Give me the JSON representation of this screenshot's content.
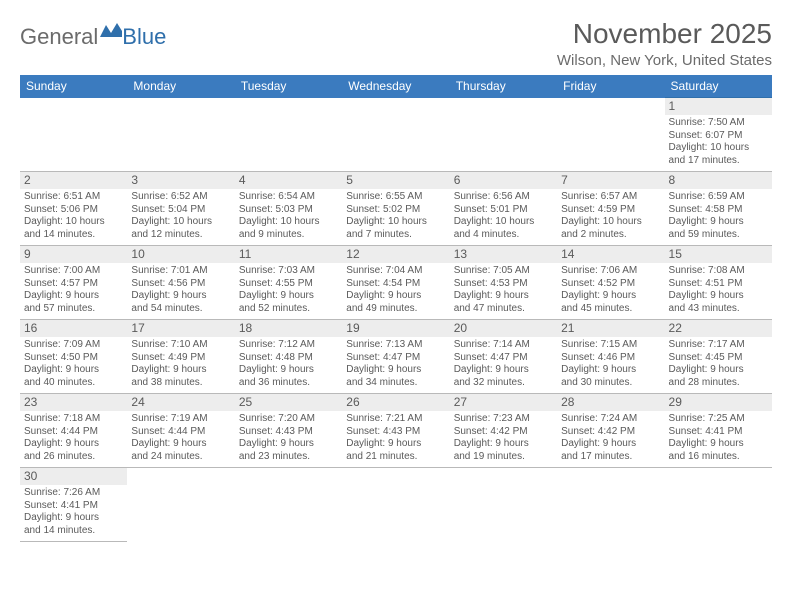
{
  "brand": {
    "part1": "General",
    "part2": "Blue"
  },
  "title": "November 2025",
  "location": "Wilson, New York, United States",
  "header_bg": "#3b7bbf",
  "header_fg": "#ffffff",
  "row_accent": "#2f6fab",
  "daynum_bg": "#ededed",
  "text_color": "#5a5a5a",
  "weekdays": [
    "Sunday",
    "Monday",
    "Tuesday",
    "Wednesday",
    "Thursday",
    "Friday",
    "Saturday"
  ],
  "weeks": [
    [
      null,
      null,
      null,
      null,
      null,
      null,
      {
        "n": "1",
        "sr": "Sunrise: 7:50 AM",
        "ss": "Sunset: 6:07 PM",
        "d1": "Daylight: 10 hours",
        "d2": "and 17 minutes."
      }
    ],
    [
      {
        "n": "2",
        "sr": "Sunrise: 6:51 AM",
        "ss": "Sunset: 5:06 PM",
        "d1": "Daylight: 10 hours",
        "d2": "and 14 minutes."
      },
      {
        "n": "3",
        "sr": "Sunrise: 6:52 AM",
        "ss": "Sunset: 5:04 PM",
        "d1": "Daylight: 10 hours",
        "d2": "and 12 minutes."
      },
      {
        "n": "4",
        "sr": "Sunrise: 6:54 AM",
        "ss": "Sunset: 5:03 PM",
        "d1": "Daylight: 10 hours",
        "d2": "and 9 minutes."
      },
      {
        "n": "5",
        "sr": "Sunrise: 6:55 AM",
        "ss": "Sunset: 5:02 PM",
        "d1": "Daylight: 10 hours",
        "d2": "and 7 minutes."
      },
      {
        "n": "6",
        "sr": "Sunrise: 6:56 AM",
        "ss": "Sunset: 5:01 PM",
        "d1": "Daylight: 10 hours",
        "d2": "and 4 minutes."
      },
      {
        "n": "7",
        "sr": "Sunrise: 6:57 AM",
        "ss": "Sunset: 4:59 PM",
        "d1": "Daylight: 10 hours",
        "d2": "and 2 minutes."
      },
      {
        "n": "8",
        "sr": "Sunrise: 6:59 AM",
        "ss": "Sunset: 4:58 PM",
        "d1": "Daylight: 9 hours",
        "d2": "and 59 minutes."
      }
    ],
    [
      {
        "n": "9",
        "sr": "Sunrise: 7:00 AM",
        "ss": "Sunset: 4:57 PM",
        "d1": "Daylight: 9 hours",
        "d2": "and 57 minutes."
      },
      {
        "n": "10",
        "sr": "Sunrise: 7:01 AM",
        "ss": "Sunset: 4:56 PM",
        "d1": "Daylight: 9 hours",
        "d2": "and 54 minutes."
      },
      {
        "n": "11",
        "sr": "Sunrise: 7:03 AM",
        "ss": "Sunset: 4:55 PM",
        "d1": "Daylight: 9 hours",
        "d2": "and 52 minutes."
      },
      {
        "n": "12",
        "sr": "Sunrise: 7:04 AM",
        "ss": "Sunset: 4:54 PM",
        "d1": "Daylight: 9 hours",
        "d2": "and 49 minutes."
      },
      {
        "n": "13",
        "sr": "Sunrise: 7:05 AM",
        "ss": "Sunset: 4:53 PM",
        "d1": "Daylight: 9 hours",
        "d2": "and 47 minutes."
      },
      {
        "n": "14",
        "sr": "Sunrise: 7:06 AM",
        "ss": "Sunset: 4:52 PM",
        "d1": "Daylight: 9 hours",
        "d2": "and 45 minutes."
      },
      {
        "n": "15",
        "sr": "Sunrise: 7:08 AM",
        "ss": "Sunset: 4:51 PM",
        "d1": "Daylight: 9 hours",
        "d2": "and 43 minutes."
      }
    ],
    [
      {
        "n": "16",
        "sr": "Sunrise: 7:09 AM",
        "ss": "Sunset: 4:50 PM",
        "d1": "Daylight: 9 hours",
        "d2": "and 40 minutes."
      },
      {
        "n": "17",
        "sr": "Sunrise: 7:10 AM",
        "ss": "Sunset: 4:49 PM",
        "d1": "Daylight: 9 hours",
        "d2": "and 38 minutes."
      },
      {
        "n": "18",
        "sr": "Sunrise: 7:12 AM",
        "ss": "Sunset: 4:48 PM",
        "d1": "Daylight: 9 hours",
        "d2": "and 36 minutes."
      },
      {
        "n": "19",
        "sr": "Sunrise: 7:13 AM",
        "ss": "Sunset: 4:47 PM",
        "d1": "Daylight: 9 hours",
        "d2": "and 34 minutes."
      },
      {
        "n": "20",
        "sr": "Sunrise: 7:14 AM",
        "ss": "Sunset: 4:47 PM",
        "d1": "Daylight: 9 hours",
        "d2": "and 32 minutes."
      },
      {
        "n": "21",
        "sr": "Sunrise: 7:15 AM",
        "ss": "Sunset: 4:46 PM",
        "d1": "Daylight: 9 hours",
        "d2": "and 30 minutes."
      },
      {
        "n": "22",
        "sr": "Sunrise: 7:17 AM",
        "ss": "Sunset: 4:45 PM",
        "d1": "Daylight: 9 hours",
        "d2": "and 28 minutes."
      }
    ],
    [
      {
        "n": "23",
        "sr": "Sunrise: 7:18 AM",
        "ss": "Sunset: 4:44 PM",
        "d1": "Daylight: 9 hours",
        "d2": "and 26 minutes."
      },
      {
        "n": "24",
        "sr": "Sunrise: 7:19 AM",
        "ss": "Sunset: 4:44 PM",
        "d1": "Daylight: 9 hours",
        "d2": "and 24 minutes."
      },
      {
        "n": "25",
        "sr": "Sunrise: 7:20 AM",
        "ss": "Sunset: 4:43 PM",
        "d1": "Daylight: 9 hours",
        "d2": "and 23 minutes."
      },
      {
        "n": "26",
        "sr": "Sunrise: 7:21 AM",
        "ss": "Sunset: 4:43 PM",
        "d1": "Daylight: 9 hours",
        "d2": "and 21 minutes."
      },
      {
        "n": "27",
        "sr": "Sunrise: 7:23 AM",
        "ss": "Sunset: 4:42 PM",
        "d1": "Daylight: 9 hours",
        "d2": "and 19 minutes."
      },
      {
        "n": "28",
        "sr": "Sunrise: 7:24 AM",
        "ss": "Sunset: 4:42 PM",
        "d1": "Daylight: 9 hours",
        "d2": "and 17 minutes."
      },
      {
        "n": "29",
        "sr": "Sunrise: 7:25 AM",
        "ss": "Sunset: 4:41 PM",
        "d1": "Daylight: 9 hours",
        "d2": "and 16 minutes."
      }
    ],
    [
      {
        "n": "30",
        "sr": "Sunrise: 7:26 AM",
        "ss": "Sunset: 4:41 PM",
        "d1": "Daylight: 9 hours",
        "d2": "and 14 minutes."
      },
      null,
      null,
      null,
      null,
      null,
      null
    ]
  ]
}
